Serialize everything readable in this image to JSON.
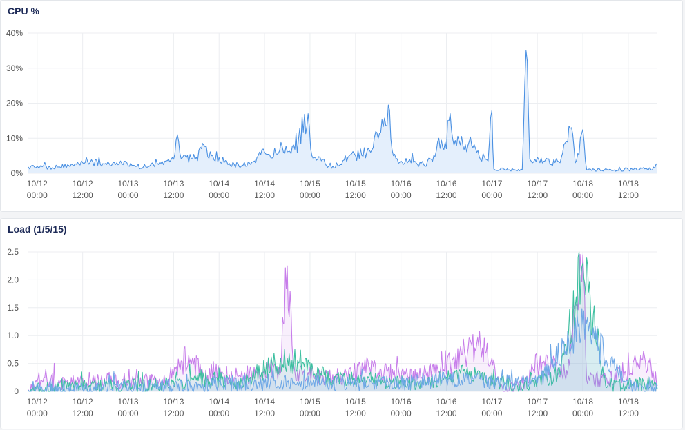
{
  "panels": [
    {
      "title": "CPU %"
    },
    {
      "title": "Load (1/5/15)"
    }
  ],
  "chart_data": [
    {
      "type": "area",
      "title": "CPU %",
      "y_unit": "%",
      "ylim": [
        0,
        40
      ],
      "y_ticks": [
        0,
        10,
        20,
        30,
        40
      ],
      "y_tick_labels": [
        "0%",
        "10%",
        "20%",
        "30%",
        "40%"
      ],
      "xlim": [
        "2025-10-11T21:40",
        "2025-10-18T19:40"
      ],
      "x_ticks": [
        "2025-10-12T00:00",
        "2025-10-12T12:00",
        "2025-10-13T00:00",
        "2025-10-13T12:00",
        "2025-10-14T00:00",
        "2025-10-14T12:00",
        "2025-10-15T00:00",
        "2025-10-15T12:00",
        "2025-10-16T00:00",
        "2025-10-16T12:00",
        "2025-10-17T00:00",
        "2025-10-17T12:00",
        "2025-10-18T00:00",
        "2025-10-18T12:00"
      ],
      "x_tick_labels": [
        [
          "10/12",
          "00:00"
        ],
        [
          "10/12",
          "12:00"
        ],
        [
          "10/13",
          "00:00"
        ],
        [
          "10/13",
          "12:00"
        ],
        [
          "10/14",
          "00:00"
        ],
        [
          "10/14",
          "12:00"
        ],
        [
          "10/15",
          "00:00"
        ],
        [
          "10/15",
          "12:00"
        ],
        [
          "10/16",
          "00:00"
        ],
        [
          "10/16",
          "12:00"
        ],
        [
          "10/17",
          "00:00"
        ],
        [
          "10/17",
          "12:00"
        ],
        [
          "10/18",
          "00:00"
        ],
        [
          "10/18",
          "12:00"
        ]
      ],
      "grid": true,
      "color": "#4a90e2",
      "fill": "#e4effc",
      "series": [
        {
          "points": [
            [
              "2025-10-11T21:40",
              1.8
            ],
            [
              "2025-10-12T00:00",
              2.0
            ],
            [
              "2025-10-12T04:00",
              1.6
            ],
            [
              "2025-10-12T06:00",
              1.8
            ],
            [
              "2025-10-12T08:00",
              2.4
            ],
            [
              "2025-10-12T12:00",
              3.0
            ],
            [
              "2025-10-12T13:00",
              4.5
            ],
            [
              "2025-10-12T14:00",
              3.2
            ],
            [
              "2025-10-12T18:00",
              2.8
            ],
            [
              "2025-10-12T22:00",
              3.5
            ],
            [
              "2025-10-13T00:00",
              2.2
            ],
            [
              "2025-10-13T04:00",
              1.8
            ],
            [
              "2025-10-13T08:00",
              2.5
            ],
            [
              "2025-10-13T10:00",
              3.5
            ],
            [
              "2025-10-13T12:00",
              4.0
            ],
            [
              "2025-10-13T13:00",
              11.0
            ],
            [
              "2025-10-13T14:00",
              4.2
            ],
            [
              "2025-10-13T18:00",
              4.6
            ],
            [
              "2025-10-13T20:00",
              8.0
            ],
            [
              "2025-10-13T22:00",
              5.0
            ],
            [
              "2025-10-14T00:00",
              4.5
            ],
            [
              "2025-10-14T02:00",
              3.5
            ],
            [
              "2025-10-14T04:00",
              2.5
            ],
            [
              "2025-10-14T06:00",
              2.2
            ],
            [
              "2025-10-14T08:00",
              3.0
            ],
            [
              "2025-10-14T10:00",
              4.5
            ],
            [
              "2025-10-14T12:00",
              6.0
            ],
            [
              "2025-10-14T16:00",
              6.5
            ],
            [
              "2025-10-14T20:00",
              6.8
            ],
            [
              "2025-10-14T23:30",
              17.0
            ],
            [
              "2025-10-15T00:30",
              5.0
            ],
            [
              "2025-10-15T02:00",
              4.0
            ],
            [
              "2025-10-15T04:00",
              2.8
            ],
            [
              "2025-10-15T06:00",
              2.0
            ],
            [
              "2025-10-15T08:00",
              2.5
            ],
            [
              "2025-10-15T10:00",
              4.5
            ],
            [
              "2025-10-15T12:00",
              5.0
            ],
            [
              "2025-10-15T16:00",
              6.0
            ],
            [
              "2025-10-15T21:00",
              18.0
            ],
            [
              "2025-10-15T22:00",
              5.0
            ],
            [
              "2025-10-16T00:00",
              3.5
            ],
            [
              "2025-10-16T04:00",
              3.0
            ],
            [
              "2025-10-16T06:00",
              2.5
            ],
            [
              "2025-10-16T08:00",
              4.0
            ],
            [
              "2025-10-16T10:00",
              10.0
            ],
            [
              "2025-10-16T12:00",
              7.0
            ],
            [
              "2025-10-16T13:00",
              17.0
            ],
            [
              "2025-10-16T14:00",
              8.0
            ],
            [
              "2025-10-16T18:00",
              9.0
            ],
            [
              "2025-10-16T20:00",
              6.0
            ],
            [
              "2025-10-16T23:00",
              3.5
            ],
            [
              "2025-10-17T00:00",
              18.0
            ],
            [
              "2025-10-17T00:30",
              1.2
            ],
            [
              "2025-10-17T06:00",
              1.0
            ],
            [
              "2025-10-17T08:00",
              1.0
            ],
            [
              "2025-10-17T09:00",
              35.0
            ],
            [
              "2025-10-17T10:00",
              4.0
            ],
            [
              "2025-10-17T14:00",
              3.5
            ],
            [
              "2025-10-17T18:00",
              3.0
            ],
            [
              "2025-10-17T21:00",
              13.0
            ],
            [
              "2025-10-17T22:00",
              3.0
            ],
            [
              "2025-10-18T00:00",
              12.5
            ],
            [
              "2025-10-18T01:00",
              1.0
            ],
            [
              "2025-10-18T12:00",
              1.0
            ],
            [
              "2025-10-18T19:00",
              1.5
            ],
            [
              "2025-10-18T19:40",
              2.5
            ]
          ]
        }
      ]
    },
    {
      "type": "area",
      "title": "Load (1/5/15)",
      "ylim": [
        0,
        2.5
      ],
      "y_ticks": [
        0,
        0.5,
        1.0,
        1.5,
        2.0,
        2.5
      ],
      "y_tick_labels": [
        "0",
        "0.5",
        "1.0",
        "1.5",
        "2.0",
        "2.5"
      ],
      "xlim": [
        "2025-10-11T21:40",
        "2025-10-18T19:40"
      ],
      "x_ticks": [
        "2025-10-12T00:00",
        "2025-10-12T12:00",
        "2025-10-13T00:00",
        "2025-10-13T12:00",
        "2025-10-14T00:00",
        "2025-10-14T12:00",
        "2025-10-15T00:00",
        "2025-10-15T12:00",
        "2025-10-16T00:00",
        "2025-10-16T12:00",
        "2025-10-17T00:00",
        "2025-10-17T12:00",
        "2025-10-18T00:00",
        "2025-10-18T12:00"
      ],
      "x_tick_labels": [
        [
          "10/12",
          "00:00"
        ],
        [
          "10/12",
          "12:00"
        ],
        [
          "10/13",
          "00:00"
        ],
        [
          "10/13",
          "12:00"
        ],
        [
          "10/14",
          "00:00"
        ],
        [
          "10/14",
          "12:00"
        ],
        [
          "10/15",
          "00:00"
        ],
        [
          "10/15",
          "12:00"
        ],
        [
          "10/16",
          "00:00"
        ],
        [
          "10/16",
          "12:00"
        ],
        [
          "10/17",
          "00:00"
        ],
        [
          "10/17",
          "12:00"
        ],
        [
          "10/18",
          "00:00"
        ],
        [
          "10/18",
          "12:00"
        ]
      ],
      "grid": true,
      "series": [
        {
          "color": "#c77dea",
          "points": [
            [
              "2025-10-11T21:40",
              0.03
            ],
            [
              "2025-10-12T02:00",
              0.25
            ],
            [
              "2025-10-12T06:00",
              0.15
            ],
            [
              "2025-10-12T10:00",
              0.18
            ],
            [
              "2025-10-12T14:00",
              0.22
            ],
            [
              "2025-10-12T20:00",
              0.2
            ],
            [
              "2025-10-13T00:00",
              0.15
            ],
            [
              "2025-10-13T04:00",
              0.2
            ],
            [
              "2025-10-13T08:00",
              0.15
            ],
            [
              "2025-10-13T12:00",
              0.3
            ],
            [
              "2025-10-13T16:00",
              0.65
            ],
            [
              "2025-10-13T20:00",
              0.25
            ],
            [
              "2025-10-14T00:00",
              0.35
            ],
            [
              "2025-10-14T04:00",
              0.25
            ],
            [
              "2025-10-14T08:00",
              0.3
            ],
            [
              "2025-10-14T12:00",
              0.4
            ],
            [
              "2025-10-14T16:00",
              0.3
            ],
            [
              "2025-10-14T18:00",
              2.25
            ],
            [
              "2025-10-14T20:00",
              0.35
            ],
            [
              "2025-10-14T22:00",
              0.3
            ],
            [
              "2025-10-15T02:00",
              0.25
            ],
            [
              "2025-10-15T06:00",
              0.3
            ],
            [
              "2025-10-15T10:00",
              0.25
            ],
            [
              "2025-10-15T14:00",
              0.45
            ],
            [
              "2025-10-15T18:00",
              0.35
            ],
            [
              "2025-10-15T22:00",
              0.3
            ],
            [
              "2025-10-16T02:00",
              0.25
            ],
            [
              "2025-10-16T06:00",
              0.3
            ],
            [
              "2025-10-16T10:00",
              0.35
            ],
            [
              "2025-10-16T13:00",
              0.5
            ],
            [
              "2025-10-16T16:00",
              0.65
            ],
            [
              "2025-10-16T20:00",
              0.85
            ],
            [
              "2025-10-17T00:00",
              0.6
            ],
            [
              "2025-10-17T02:00",
              0.05
            ],
            [
              "2025-10-17T08:00",
              0.15
            ],
            [
              "2025-10-17T12:00",
              0.5
            ],
            [
              "2025-10-17T16:00",
              0.45
            ],
            [
              "2025-10-17T20:00",
              0.3
            ],
            [
              "2025-10-18T00:00",
              2.45
            ],
            [
              "2025-10-18T01:00",
              0.2
            ],
            [
              "2025-10-18T06:00",
              0.25
            ],
            [
              "2025-10-18T10:00",
              0.3
            ],
            [
              "2025-10-18T14:00",
              0.55
            ],
            [
              "2025-10-18T18:00",
              0.45
            ],
            [
              "2025-10-18T19:40",
              0.1
            ]
          ]
        },
        {
          "color": "#3dbfa0",
          "points": [
            [
              "2025-10-11T21:40",
              0.02
            ],
            [
              "2025-10-12T06:00",
              0.08
            ],
            [
              "2025-10-12T18:00",
              0.1
            ],
            [
              "2025-10-13T06:00",
              0.1
            ],
            [
              "2025-10-13T18:00",
              0.2
            ],
            [
              "2025-10-14T06:00",
              0.15
            ],
            [
              "2025-10-14T18:00",
              0.6
            ],
            [
              "2025-10-15T06:00",
              0.2
            ],
            [
              "2025-10-15T18:00",
              0.2
            ],
            [
              "2025-10-16T06:00",
              0.15
            ],
            [
              "2025-10-16T18:00",
              0.35
            ],
            [
              "2025-10-17T06:00",
              0.08
            ],
            [
              "2025-10-17T18:00",
              0.3
            ],
            [
              "2025-10-18T00:00",
              2.3
            ],
            [
              "2025-10-18T06:00",
              0.1
            ],
            [
              "2025-10-18T18:00",
              0.15
            ],
            [
              "2025-10-18T19:40",
              0.05
            ]
          ]
        },
        {
          "color": "#6fa8e6",
          "points": [
            [
              "2025-10-11T21:40",
              0.02
            ],
            [
              "2025-10-12T12:00",
              0.05
            ],
            [
              "2025-10-13T12:00",
              0.1
            ],
            [
              "2025-10-14T12:00",
              0.15
            ],
            [
              "2025-10-15T00:00",
              0.15
            ],
            [
              "2025-10-15T12:00",
              0.12
            ],
            [
              "2025-10-16T12:00",
              0.2
            ],
            [
              "2025-10-17T12:00",
              0.15
            ],
            [
              "2025-10-18T00:00",
              1.2
            ],
            [
              "2025-10-18T12:00",
              0.08
            ],
            [
              "2025-10-18T19:40",
              0.04
            ]
          ]
        }
      ]
    }
  ]
}
